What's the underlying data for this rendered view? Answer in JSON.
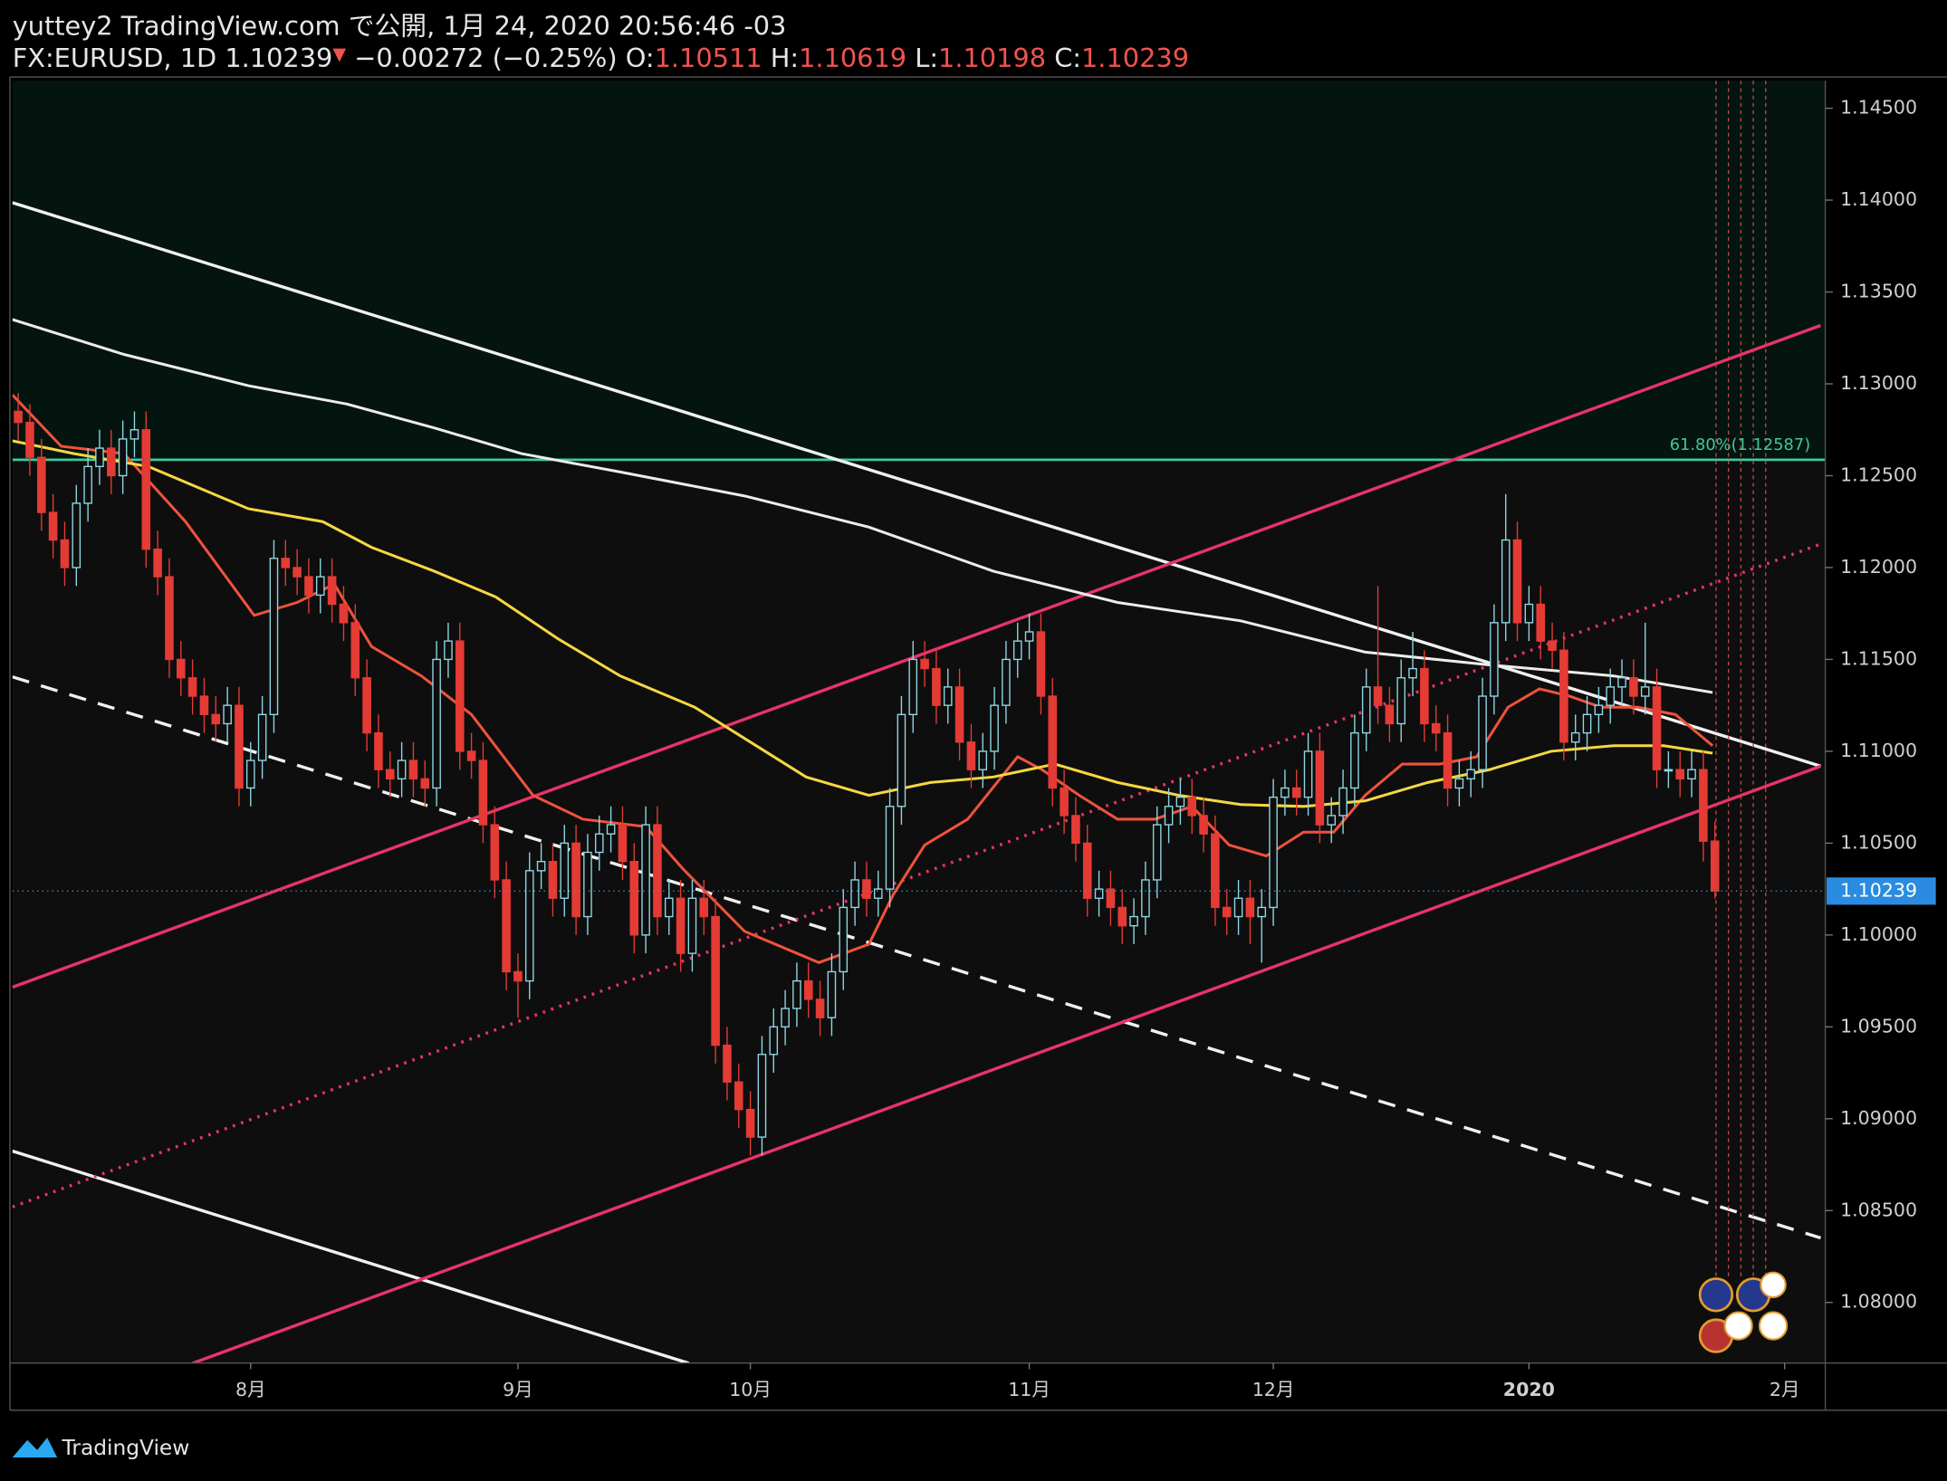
{
  "header": {
    "title": "yuttey2 TradingView.com で公開, 1月 24, 2020 20:56:46 -03",
    "symbol": "FX:EURUSD, 1D",
    "change_arrow": "▼",
    "change": "−0.00272 (−0.25%)",
    "ohlc_labels": [
      "O:",
      "H:",
      "L:",
      "C:"
    ]
  },
  "footer": {
    "brand": "TradingView"
  },
  "chart_data": {
    "type": "candlestick",
    "up_color": "#8fd8e6",
    "down_color": "#e53b35",
    "categories": [
      null,
      null,
      null,
      null,
      null,
      null,
      null,
      null,
      null,
      null,
      null,
      null,
      null,
      null,
      null,
      null,
      null,
      null,
      null,
      null,
      "8月",
      null,
      null,
      null,
      null,
      null,
      null,
      null,
      null,
      null,
      null,
      null,
      null,
      null,
      null,
      null,
      null,
      null,
      null,
      null,
      null,
      null,
      null,
      "9月",
      null,
      null,
      null,
      null,
      null,
      null,
      null,
      null,
      null,
      null,
      null,
      null,
      null,
      null,
      null,
      null,
      null,
      null,
      null,
      "10月",
      null,
      null,
      null,
      null,
      null,
      null,
      null,
      null,
      null,
      null,
      null,
      null,
      null,
      null,
      null,
      null,
      null,
      null,
      null,
      null,
      null,
      null,
      null,
      "11月",
      null,
      null,
      null,
      null,
      null,
      null,
      null,
      null,
      null,
      null,
      null,
      null,
      null,
      null,
      null,
      null,
      null,
      null,
      null,
      null,
      "12月",
      null,
      null,
      null,
      null,
      null,
      null,
      null,
      null,
      null,
      null,
      null,
      null,
      null,
      null,
      null,
      null,
      null,
      null,
      null,
      null,
      null,
      "2020",
      null,
      null,
      null,
      null,
      null,
      null,
      null,
      null,
      null,
      null,
      null,
      null,
      null,
      null,
      null,
      null,
      null,
      null,
      null,
      null,
      null,
      "2月",
      null,
      null,
      null
    ],
    "open": [
      1.1285,
      1.1279,
      1.126,
      1.123,
      1.1215,
      1.12,
      1.1235,
      1.1255,
      1.1265,
      1.125,
      1.127,
      1.1275,
      1.121,
      1.1195,
      1.115,
      1.114,
      1.113,
      1.112,
      1.1115,
      1.1125,
      1.108,
      1.1095,
      1.112,
      1.1205,
      1.12,
      1.1195,
      1.1185,
      1.1195,
      1.118,
      1.117,
      1.114,
      1.111,
      1.109,
      1.1085,
      1.1095,
      1.1085,
      1.108,
      1.115,
      1.116,
      1.11,
      1.1095,
      1.106,
      1.103,
      1.098,
      1.0975,
      1.1035,
      1.104,
      1.102,
      1.105,
      1.101,
      1.1045,
      1.1055,
      1.106,
      1.104,
      1.1,
      1.106,
      1.101,
      1.102,
      1.099,
      1.102,
      1.101,
      1.094,
      1.092,
      1.0905,
      1.089,
      1.0935,
      1.095,
      1.096,
      1.0975,
      1.0965,
      1.0955,
      1.098,
      1.1015,
      1.103,
      1.102,
      1.1025,
      1.107,
      1.112,
      1.115,
      1.1145,
      1.1125,
      1.1135,
      1.1105,
      1.109,
      1.11,
      1.1125,
      1.115,
      1.116,
      1.1165,
      1.113,
      1.108,
      1.1065,
      1.105,
      1.102,
      1.1025,
      1.1015,
      1.1005,
      1.101,
      1.103,
      1.106,
      1.107,
      1.1075,
      1.1065,
      1.1055,
      1.1015,
      1.101,
      1.102,
      1.101,
      1.1015,
      1.1075,
      1.108,
      1.1075,
      1.11,
      1.106,
      1.1065,
      1.108,
      1.111,
      1.1135,
      1.1125,
      1.1115,
      1.114,
      1.1145,
      1.1115,
      1.111,
      1.108,
      1.1085,
      1.109,
      1.113,
      1.117,
      1.1215,
      1.117,
      1.118,
      1.116,
      1.1155,
      1.1105,
      1.111,
      1.112,
      1.1125,
      1.1135,
      1.114,
      1.113,
      1.1135,
      1.109,
      1.109,
      1.1085,
      1.109,
      1.10511,
      null,
      null,
      null,
      null,
      null,
      null,
      null,
      null,
      null
    ],
    "high": [
      1.1295,
      1.1289,
      1.127,
      1.124,
      1.1225,
      1.1245,
      1.1265,
      1.1275,
      1.1275,
      1.128,
      1.1285,
      1.1285,
      1.122,
      1.1205,
      1.116,
      1.115,
      1.114,
      1.113,
      1.1135,
      1.1135,
      1.1105,
      1.113,
      1.1215,
      1.1215,
      1.121,
      1.1205,
      1.1205,
      1.1205,
      1.119,
      1.118,
      1.115,
      1.112,
      1.11,
      1.1105,
      1.1105,
      1.1095,
      1.116,
      1.117,
      1.117,
      1.111,
      1.1105,
      1.107,
      1.104,
      1.099,
      1.1045,
      1.105,
      1.105,
      1.106,
      1.106,
      1.1055,
      1.1065,
      1.107,
      1.107,
      1.105,
      1.107,
      1.107,
      1.103,
      1.103,
      1.103,
      1.103,
      1.102,
      1.095,
      1.093,
      1.0915,
      1.0945,
      1.096,
      1.097,
      1.0985,
      1.0985,
      1.0975,
      1.099,
      1.1025,
      1.104,
      1.104,
      1.1035,
      1.108,
      1.113,
      1.116,
      1.116,
      1.1155,
      1.1145,
      1.1145,
      1.1115,
      1.111,
      1.1135,
      1.116,
      1.117,
      1.1175,
      1.1175,
      1.114,
      1.109,
      1.1075,
      1.106,
      1.1035,
      1.1035,
      1.1025,
      1.102,
      1.104,
      1.107,
      1.108,
      1.1085,
      1.1085,
      1.1075,
      1.1065,
      1.1025,
      1.103,
      1.103,
      1.1025,
      1.1085,
      1.109,
      1.109,
      1.111,
      1.111,
      1.1075,
      1.109,
      1.112,
      1.1145,
      1.119,
      1.1135,
      1.115,
      1.1165,
      1.1155,
      1.1125,
      1.112,
      1.1095,
      1.11,
      1.114,
      1.118,
      1.124,
      1.1225,
      1.119,
      1.119,
      1.117,
      1.1165,
      1.112,
      1.113,
      1.1135,
      1.1145,
      1.115,
      1.115,
      1.117,
      1.1145,
      1.11,
      1.11,
      1.11,
      1.11,
      1.10619,
      null,
      null,
      null,
      null,
      null,
      null,
      null,
      null,
      null
    ],
    "low": [
      1.1269,
      1.125,
      1.122,
      1.1205,
      1.119,
      1.119,
      1.1225,
      1.1245,
      1.124,
      1.124,
      1.126,
      1.12,
      1.1185,
      1.114,
      1.113,
      1.112,
      1.111,
      1.1105,
      1.1105,
      1.107,
      1.107,
      1.1085,
      1.111,
      1.119,
      1.1185,
      1.1175,
      1.1175,
      1.117,
      1.116,
      1.113,
      1.11,
      1.108,
      1.1075,
      1.1075,
      1.1075,
      1.107,
      1.107,
      1.114,
      1.109,
      1.1085,
      1.105,
      1.102,
      1.097,
      1.0955,
      1.0965,
      1.1025,
      1.101,
      1.101,
      1.1,
      1.1,
      1.1035,
      1.1045,
      1.103,
      1.099,
      1.099,
      1.1,
      1.1,
      1.098,
      1.098,
      1.1,
      1.093,
      1.091,
      1.0895,
      1.088,
      1.088,
      1.0925,
      1.094,
      1.095,
      1.0955,
      1.0945,
      1.0945,
      1.097,
      1.1005,
      1.101,
      1.101,
      1.1015,
      1.106,
      1.111,
      1.1135,
      1.1115,
      1.1115,
      1.1095,
      1.108,
      1.108,
      1.109,
      1.1115,
      1.114,
      1.115,
      1.112,
      1.107,
      1.1055,
      1.104,
      1.101,
      1.101,
      1.1005,
      1.0995,
      1.0995,
      1.1,
      1.102,
      1.105,
      1.106,
      1.1055,
      1.1045,
      1.1005,
      1.1,
      1.1,
      1.0995,
      1.0985,
      1.1005,
      1.1065,
      1.1065,
      1.1065,
      1.105,
      1.105,
      1.1055,
      1.107,
      1.11,
      1.1115,
      1.1105,
      1.1105,
      1.113,
      1.1105,
      1.11,
      1.107,
      1.107,
      1.1075,
      1.108,
      1.112,
      1.116,
      1.116,
      1.116,
      1.115,
      1.1145,
      1.1095,
      1.1095,
      1.11,
      1.111,
      1.1115,
      1.1125,
      1.112,
      1.112,
      1.108,
      1.108,
      1.1075,
      1.1075,
      1.104,
      1.10198,
      null,
      null,
      null,
      null,
      null,
      null,
      null,
      null,
      null
    ],
    "close": [
      1.1279,
      1.126,
      1.123,
      1.1215,
      1.12,
      1.1235,
      1.1255,
      1.1265,
      1.125,
      1.127,
      1.1275,
      1.121,
      1.1195,
      1.115,
      1.114,
      1.113,
      1.112,
      1.1115,
      1.1125,
      1.108,
      1.1095,
      1.112,
      1.1205,
      1.12,
      1.1195,
      1.1185,
      1.1195,
      1.118,
      1.117,
      1.114,
      1.111,
      1.109,
      1.1085,
      1.1095,
      1.1085,
      1.108,
      1.115,
      1.116,
      1.11,
      1.1095,
      1.106,
      1.103,
      1.098,
      1.0975,
      1.1035,
      1.104,
      1.102,
      1.105,
      1.101,
      1.1045,
      1.1055,
      1.106,
      1.104,
      1.1,
      1.106,
      1.101,
      1.102,
      1.099,
      1.102,
      1.101,
      1.094,
      1.092,
      1.0905,
      1.089,
      1.0935,
      1.095,
      1.096,
      1.0975,
      1.0965,
      1.0955,
      1.098,
      1.1015,
      1.103,
      1.102,
      1.1025,
      1.107,
      1.112,
      1.115,
      1.1145,
      1.1125,
      1.1135,
      1.1105,
      1.109,
      1.11,
      1.1125,
      1.115,
      1.116,
      1.1165,
      1.113,
      1.108,
      1.1065,
      1.105,
      1.102,
      1.1025,
      1.1015,
      1.1005,
      1.101,
      1.103,
      1.106,
      1.107,
      1.1075,
      1.1065,
      1.1055,
      1.1015,
      1.101,
      1.102,
      1.101,
      1.1015,
      1.1075,
      1.108,
      1.1075,
      1.11,
      1.106,
      1.1065,
      1.108,
      1.111,
      1.1135,
      1.1125,
      1.1115,
      1.114,
      1.1145,
      1.1115,
      1.111,
      1.108,
      1.1085,
      1.109,
      1.113,
      1.117,
      1.1215,
      1.117,
      1.118,
      1.116,
      1.1155,
      1.1105,
      1.111,
      1.112,
      1.1125,
      1.1135,
      1.114,
      1.113,
      1.1135,
      1.109,
      1.109,
      1.1085,
      1.109,
      1.10511,
      1.10239,
      null,
      null,
      null,
      null,
      null,
      null,
      null,
      null,
      null
    ],
    "moving_averages": [
      {
        "color": "#f0523c",
        "points": [
          [
            -0.5,
            1.1294
          ],
          [
            3.7,
            1.1266
          ],
          [
            9.1,
            1.1262
          ],
          [
            14.4,
            1.1225
          ],
          [
            20.3,
            1.1174
          ],
          [
            24.0,
            1.1181
          ],
          [
            27.2,
            1.1191
          ],
          [
            30.4,
            1.1157
          ],
          [
            34.7,
            1.1141
          ],
          [
            39.0,
            1.112
          ],
          [
            44.3,
            1.1076
          ],
          [
            48.6,
            1.1063
          ],
          [
            54.0,
            1.1059
          ],
          [
            57.2,
            1.1036
          ],
          [
            62.5,
            1.1002
          ],
          [
            68.9,
            1.0985
          ],
          [
            73.2,
            1.0995
          ],
          [
            75.3,
            1.1022
          ],
          [
            78.0,
            1.1049
          ],
          [
            81.7,
            1.1063
          ],
          [
            86.0,
            1.1097
          ],
          [
            88.1,
            1.109
          ],
          [
            91.3,
            1.1076
          ],
          [
            94.6,
            1.1063
          ],
          [
            97.8,
            1.1063
          ],
          [
            101.0,
            1.107
          ],
          [
            104.2,
            1.1049
          ],
          [
            107.4,
            1.1043
          ],
          [
            110.6,
            1.1056
          ],
          [
            113.2,
            1.1056
          ],
          [
            115.9,
            1.1076
          ],
          [
            119.1,
            1.1093
          ],
          [
            122.3,
            1.1093
          ],
          [
            125.5,
            1.1097
          ],
          [
            128.2,
            1.1124
          ],
          [
            130.9,
            1.1134
          ],
          [
            133.5,
            1.113
          ],
          [
            136.2,
            1.1124
          ],
          [
            139.4,
            1.1124
          ],
          [
            142.6,
            1.112
          ],
          [
            145.8,
            1.1103
          ]
        ]
      },
      {
        "color": "#f5d742",
        "points": [
          [
            -0.5,
            1.1269
          ],
          [
            4.8,
            1.1262
          ],
          [
            11.2,
            1.1255
          ],
          [
            19.8,
            1.1232
          ],
          [
            26.2,
            1.1225
          ],
          [
            30.4,
            1.1211
          ],
          [
            35.8,
            1.1198
          ],
          [
            41.1,
            1.1184
          ],
          [
            46.5,
            1.1161
          ],
          [
            51.8,
            1.1141
          ],
          [
            58.2,
            1.1124
          ],
          [
            62.5,
            1.1107
          ],
          [
            67.8,
            1.1086
          ],
          [
            73.2,
            1.1076
          ],
          [
            78.5,
            1.1083
          ],
          [
            83.9,
            1.1086
          ],
          [
            89.2,
            1.1093
          ],
          [
            94.6,
            1.1083
          ],
          [
            99.9,
            1.1076
          ],
          [
            105.2,
            1.1071
          ],
          [
            110.6,
            1.107
          ],
          [
            115.9,
            1.1073
          ],
          [
            121.3,
            1.1083
          ],
          [
            126.6,
            1.109
          ],
          [
            131.9,
            1.11
          ],
          [
            137.3,
            1.1103
          ],
          [
            141.6,
            1.1103
          ],
          [
            145.8,
            1.1099
          ]
        ]
      },
      {
        "color": "#ececec",
        "points": [
          [
            -0.5,
            1.1335
          ],
          [
            9.1,
            1.1316
          ],
          [
            19.8,
            1.1299
          ],
          [
            28.3,
            1.1289
          ],
          [
            35.8,
            1.1276
          ],
          [
            43.3,
            1.1262
          ],
          [
            51.8,
            1.1252
          ],
          [
            62.5,
            1.1239
          ],
          [
            73.2,
            1.1222
          ],
          [
            83.9,
            1.1198
          ],
          [
            94.6,
            1.1181
          ],
          [
            105.2,
            1.1171
          ],
          [
            115.9,
            1.1154
          ],
          [
            126.6,
            1.1147
          ],
          [
            137.3,
            1.1141
          ],
          [
            145.8,
            1.1132
          ]
        ]
      }
    ],
    "trendlines": [
      {
        "color": "#f0f0f0",
        "style": "solid",
        "points": [
          [
            -0.5,
            1.13986
          ],
          [
            155.1,
            1.10919
          ]
        ]
      },
      {
        "color": "#f0f0f0",
        "style": "dashed",
        "points": [
          [
            -0.5,
            1.11405
          ],
          [
            155.1,
            1.08351
          ]
        ]
      },
      {
        "color": "#f0f0f0",
        "style": "solid",
        "points": [
          [
            -0.5,
            1.08824
          ],
          [
            57.7,
            1.07669
          ]
        ]
      },
      {
        "color": "#e8336b",
        "style": "solid",
        "points": [
          [
            -0.5,
            1.09716
          ],
          [
            155.1,
            1.13318
          ]
        ]
      },
      {
        "color": "#e8336b",
        "style": "solid",
        "points": [
          [
            15.0,
            1.07669
          ],
          [
            155.1,
            1.10919
          ]
        ]
      },
      {
        "color": "#e8336b",
        "style": "dotted",
        "points": [
          [
            -0.5,
            1.0852
          ],
          [
            155.1,
            1.12128
          ]
        ]
      }
    ],
    "fib_level": {
      "value": 1.12587,
      "label": "61.80%(1.12587)",
      "color": "#3ec99a"
    },
    "ylim": [
      1.0767,
      1.1465
    ],
    "yticks": [
      {
        "value": 1.08,
        "label": "1.08000"
      },
      {
        "value": 1.085,
        "label": "1.08500"
      },
      {
        "value": 1.09,
        "label": "1.09000"
      },
      {
        "value": 1.095,
        "label": "1.09500"
      },
      {
        "value": 1.1,
        "label": "1.10000"
      },
      {
        "value": 1.105,
        "label": "1.10500"
      },
      {
        "value": 1.11,
        "label": "1.11000"
      },
      {
        "value": 1.115,
        "label": "1.11500"
      },
      {
        "value": 1.12,
        "label": "1.12000"
      },
      {
        "value": 1.125,
        "label": "1.12500"
      },
      {
        "value": 1.13,
        "label": "1.13000"
      },
      {
        "value": 1.135,
        "label": "1.13500"
      },
      {
        "value": 1.14,
        "label": "1.14000"
      },
      {
        "value": 1.145,
        "label": "1.14500"
      }
    ],
    "grid": false
  }
}
